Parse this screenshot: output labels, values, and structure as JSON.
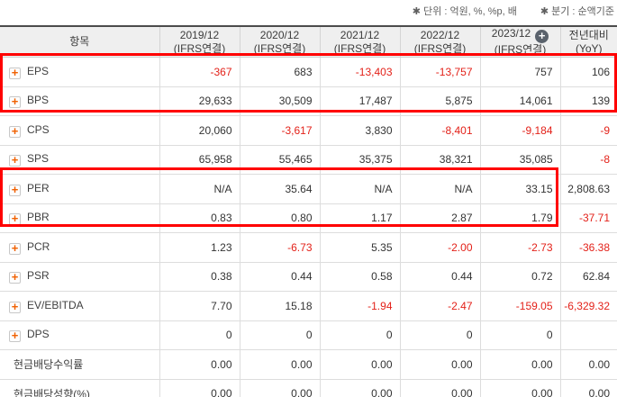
{
  "notes": {
    "unit": "✱ 단위 : 억원, %, %p, 배",
    "basis": "✱ 분기 : 순액기준"
  },
  "table": {
    "columns": [
      {
        "label": "항목"
      },
      {
        "line1": "2019/12",
        "line2": "(IFRS연결)"
      },
      {
        "line1": "2020/12",
        "line2": "(IFRS연결)"
      },
      {
        "line1": "2021/12",
        "line2": "(IFRS연결)"
      },
      {
        "line1": "2022/12",
        "line2": "(IFRS연결)",
        "icon": "plus-circle-icon"
      },
      {
        "line1": "2023/12",
        "line2": "(IFRS연결)"
      },
      {
        "line1": "전년대비",
        "line2": "(YoY)"
      }
    ],
    "header_plus_icon_column": "2023/12",
    "rows": [
      {
        "id": "eps",
        "label": "EPS",
        "expandable": true,
        "values": [
          "-367",
          "683",
          "-13,403",
          "-13,757",
          "757",
          "106"
        ]
      },
      {
        "id": "bps",
        "label": "BPS",
        "expandable": true,
        "values": [
          "29,633",
          "30,509",
          "17,487",
          "5,875",
          "14,061",
          "139"
        ]
      },
      {
        "id": "cps",
        "label": "CPS",
        "expandable": true,
        "values": [
          "20,060",
          "-3,617",
          "3,830",
          "-8,401",
          "-9,184",
          "-9"
        ]
      },
      {
        "id": "sps",
        "label": "SPS",
        "expandable": true,
        "values": [
          "65,958",
          "55,465",
          "35,375",
          "38,321",
          "35,085",
          "-8"
        ]
      },
      {
        "id": "per",
        "label": "PER",
        "expandable": true,
        "values": [
          "N/A",
          "35.64",
          "N/A",
          "N/A",
          "33.15",
          "2,808.63"
        ]
      },
      {
        "id": "pbr",
        "label": "PBR",
        "expandable": true,
        "values": [
          "0.83",
          "0.80",
          "1.17",
          "2.87",
          "1.79",
          "-37.71"
        ]
      },
      {
        "id": "pcr",
        "label": "PCR",
        "expandable": true,
        "values": [
          "1.23",
          "-6.73",
          "5.35",
          "-2.00",
          "-2.73",
          "-36.38"
        ]
      },
      {
        "id": "psr",
        "label": "PSR",
        "expandable": true,
        "values": [
          "0.38",
          "0.44",
          "0.58",
          "0.44",
          "0.72",
          "62.84"
        ]
      },
      {
        "id": "ev-ebitda",
        "label": "EV/EBITDA",
        "expandable": true,
        "values": [
          "7.70",
          "15.18",
          "-1.94",
          "-2.47",
          "-159.05",
          "-6,329.32"
        ]
      },
      {
        "id": "dps",
        "label": "DPS",
        "expandable": true,
        "values": [
          "0",
          "0",
          "0",
          "0",
          "0",
          ""
        ]
      },
      {
        "id": "cash-dividend-yield",
        "label": "현금배당수익률",
        "expandable": false,
        "values": [
          "0.00",
          "0.00",
          "0.00",
          "0.00",
          "0.00",
          "0.00"
        ]
      },
      {
        "id": "cash-dividend-payout",
        "label": "현금배당성향(%)",
        "expandable": false,
        "values": [
          "0.00",
          "0.00",
          "0.00",
          "0.00",
          "0.00",
          "0.00"
        ]
      }
    ],
    "highlights": [
      {
        "rows": [
          "EPS",
          "BPS"
        ],
        "columns": "all"
      },
      {
        "rows": [
          "PER",
          "PBR"
        ],
        "columns": "항목 through 2023/12"
      }
    ]
  },
  "colors": {
    "negative_value": "#e32119",
    "highlight_border": "#ff0000",
    "header_background": "#efefef",
    "expand_icon_plus": "#f06000",
    "header_plus_circle": "#5a626c",
    "table_top_border": "#4c4c4c"
  }
}
